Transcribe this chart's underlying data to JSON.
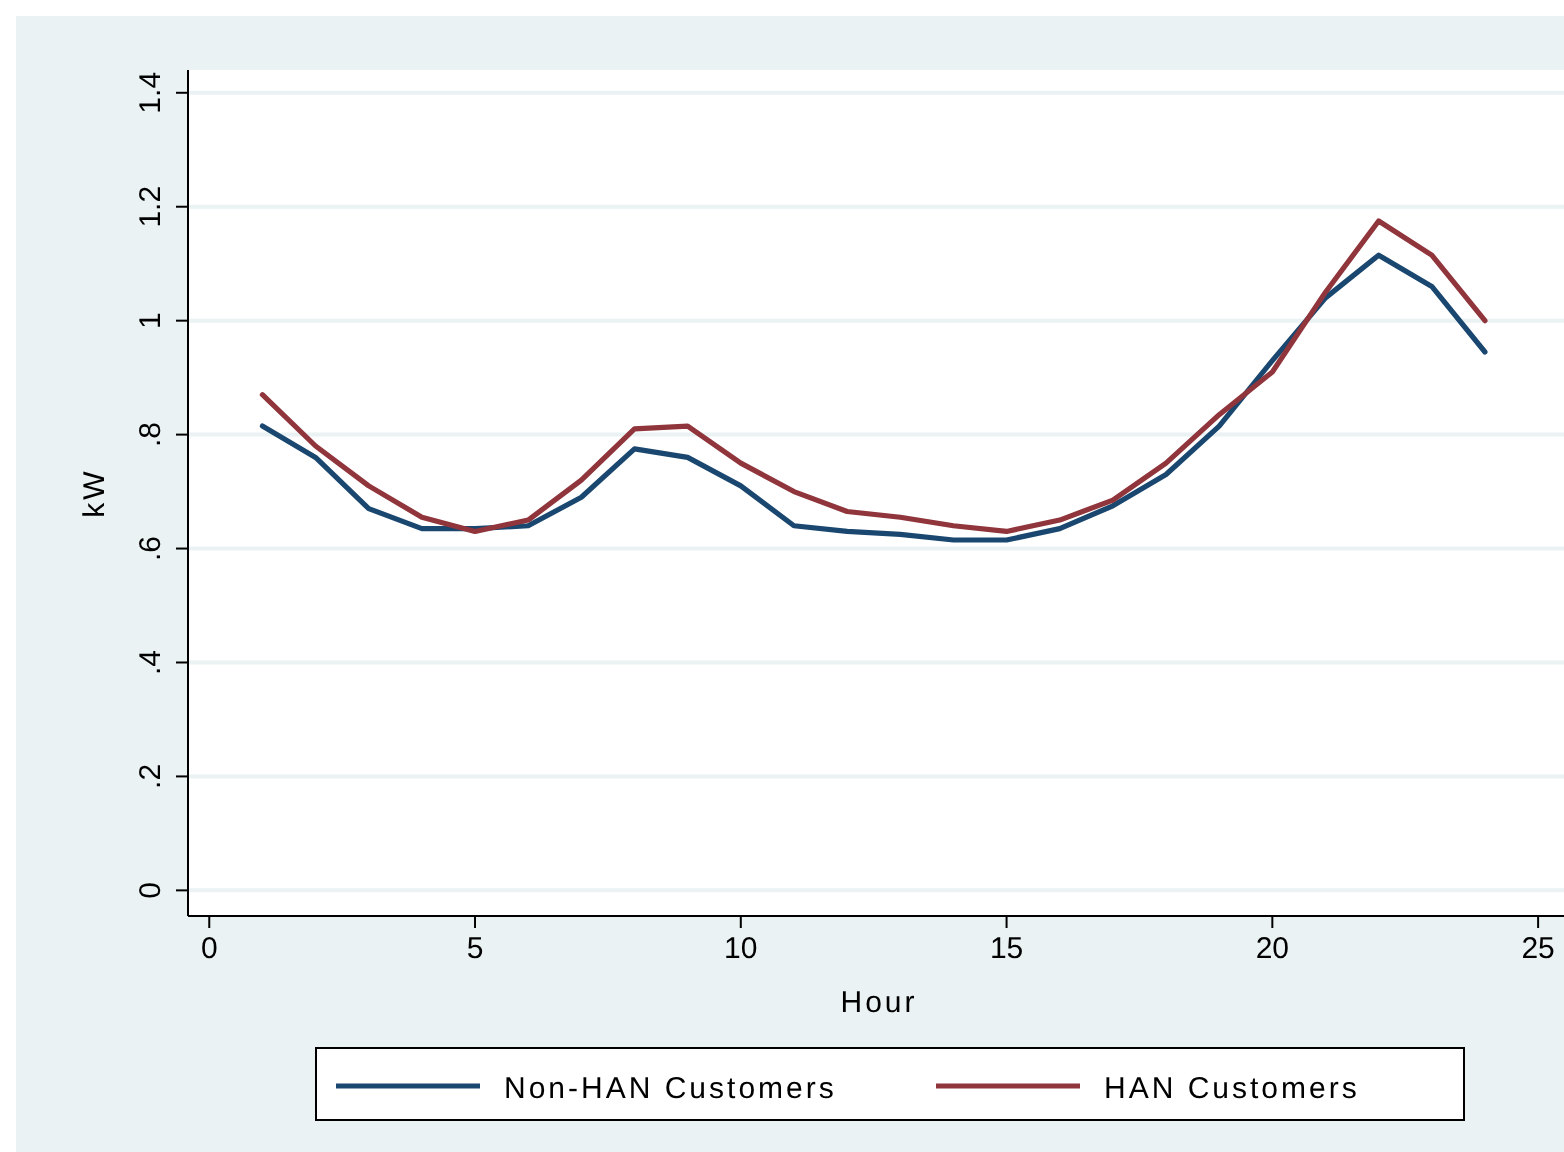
{
  "chart_data": {
    "type": "line",
    "xlabel": "Hour",
    "ylabel": "kW",
    "x": [
      1,
      2,
      3,
      4,
      5,
      6,
      7,
      8,
      9,
      10,
      11,
      12,
      13,
      14,
      15,
      16,
      17,
      18,
      19,
      20,
      21,
      22,
      23,
      24
    ],
    "series": [
      {
        "name": "Non-HAN Customers",
        "color": "#1a476f",
        "values": [
          0.815,
          0.76,
          0.67,
          0.635,
          0.635,
          0.64,
          0.69,
          0.775,
          0.76,
          0.71,
          0.64,
          0.63,
          0.625,
          0.615,
          0.615,
          0.635,
          0.675,
          0.73,
          0.815,
          0.93,
          1.04,
          1.115,
          1.06,
          0.945
        ]
      },
      {
        "name": "HAN Customers",
        "color": "#90353b",
        "values": [
          0.87,
          0.78,
          0.71,
          0.655,
          0.63,
          0.65,
          0.72,
          0.81,
          0.815,
          0.75,
          0.7,
          0.665,
          0.655,
          0.64,
          0.63,
          0.65,
          0.685,
          0.75,
          0.835,
          0.91,
          1.05,
          1.175,
          1.115,
          1.0
        ]
      }
    ],
    "xlim": [
      -0.4,
      25.6
    ],
    "xticks": [
      0,
      5,
      10,
      15,
      20,
      25
    ],
    "ylim": [
      -0.045,
      1.44
    ],
    "yticks": [
      {
        "value": 0,
        "label": "0"
      },
      {
        "value": 0.2,
        "label": ".2"
      },
      {
        "value": 0.4,
        "label": ".4"
      },
      {
        "value": 0.6,
        "label": ".6"
      },
      {
        "value": 0.8,
        "label": ".8"
      },
      {
        "value": 1,
        "label": "1"
      },
      {
        "value": 1.2,
        "label": "1.2"
      },
      {
        "value": 1.4,
        "label": "1.4"
      }
    ],
    "grid": "y",
    "legend": "bottom",
    "marker": "none",
    "line_style": "solid"
  }
}
